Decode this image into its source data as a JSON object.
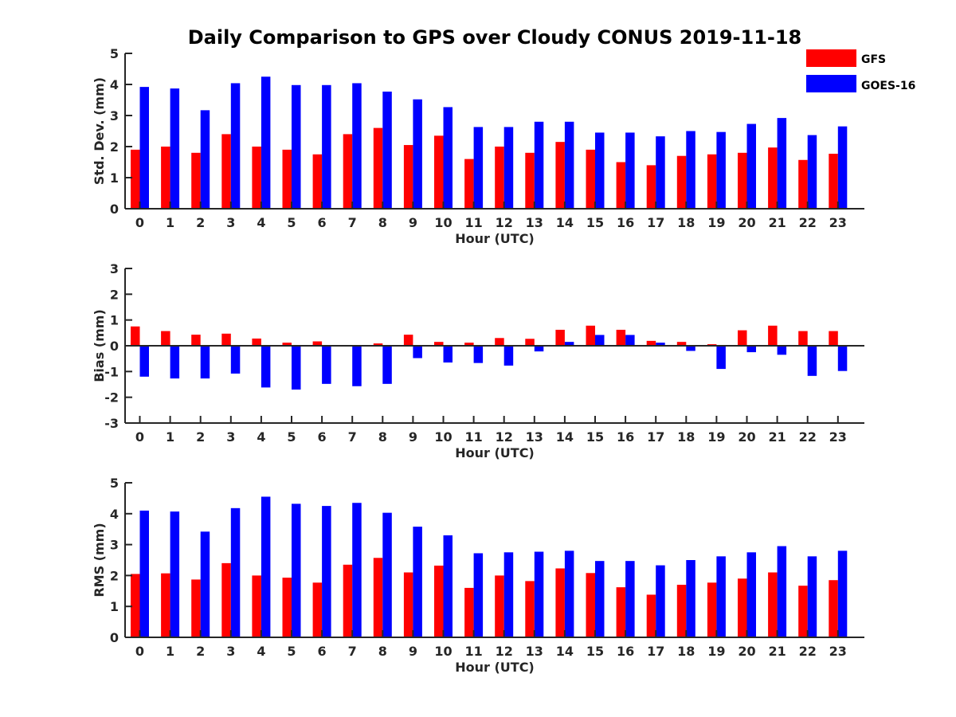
{
  "chart_data": {
    "type": "bar",
    "title": "Daily Comparison to GPS over Cloudy CONUS 2019-11-18",
    "legend": {
      "placement": "top-right",
      "entries": [
        "GFS",
        "GOES-16"
      ]
    },
    "colors": {
      "GFS": "#ff0000",
      "GOES-16": "#0000ff"
    },
    "categories": [
      "0",
      "1",
      "2",
      "3",
      "4",
      "5",
      "6",
      "7",
      "8",
      "9",
      "10",
      "11",
      "12",
      "13",
      "14",
      "15",
      "16",
      "17",
      "18",
      "19",
      "20",
      "21",
      "22",
      "23"
    ],
    "panels": [
      {
        "ylabel": "Std. Dev. (mm)",
        "xlabel": "Hour (UTC)",
        "ylim": [
          0,
          5
        ],
        "yticks": [
          "0",
          "1",
          "2",
          "3",
          "4",
          "5"
        ],
        "series": [
          {
            "name": "GFS",
            "values": [
              1.9,
              2.0,
              1.8,
              2.4,
              2.0,
              1.9,
              1.75,
              2.4,
              2.6,
              2.05,
              2.35,
              1.6,
              2.0,
              1.8,
              2.15,
              1.9,
              1.5,
              1.4,
              1.7,
              1.75,
              1.8,
              1.97,
              1.57,
              1.77
            ]
          },
          {
            "name": "GOES-16",
            "values": [
              3.92,
              3.87,
              3.17,
              4.04,
              4.25,
              3.98,
              3.98,
              4.04,
              3.77,
              3.52,
              3.27,
              2.63,
              2.63,
              2.8,
              2.8,
              2.45,
              2.45,
              2.33,
              2.5,
              2.47,
              2.73,
              2.92,
              2.37,
              2.65
            ]
          }
        ]
      },
      {
        "ylabel": "Bias (mm)",
        "xlabel": "Hour (UTC)",
        "ylim": [
          -3,
          3
        ],
        "yticks": [
          "-3",
          "-2",
          "-1",
          "0",
          "1",
          "2",
          "3"
        ],
        "series": [
          {
            "name": "GFS",
            "values": [
              0.75,
              0.57,
              0.43,
              0.47,
              0.28,
              0.12,
              0.17,
              0.0,
              0.09,
              0.43,
              0.15,
              0.12,
              0.3,
              0.27,
              0.62,
              0.78,
              0.62,
              0.19,
              0.15,
              0.06,
              0.6,
              0.78,
              0.57,
              0.57
            ]
          },
          {
            "name": "GOES-16",
            "values": [
              -1.2,
              -1.27,
              -1.27,
              -1.08,
              -1.62,
              -1.7,
              -1.48,
              -1.57,
              -1.48,
              -0.48,
              -0.65,
              -0.67,
              -0.77,
              -0.22,
              0.15,
              0.42,
              0.42,
              0.12,
              -0.2,
              -0.9,
              -0.25,
              -0.35,
              -1.17,
              -0.98
            ]
          }
        ]
      },
      {
        "ylabel": "RMS (mm)",
        "xlabel": "Hour (UTC)",
        "ylim": [
          0,
          5
        ],
        "yticks": [
          "0",
          "1",
          "2",
          "3",
          "4",
          "5"
        ],
        "series": [
          {
            "name": "GFS",
            "values": [
              2.05,
              2.07,
              1.87,
              2.4,
              2.0,
              1.93,
              1.77,
              2.35,
              2.57,
              2.1,
              2.32,
              1.6,
              2.0,
              1.82,
              2.23,
              2.08,
              1.62,
              1.38,
              1.7,
              1.77,
              1.9,
              2.1,
              1.67,
              1.85
            ]
          },
          {
            "name": "GOES-16",
            "values": [
              4.1,
              4.07,
              3.42,
              4.18,
              4.55,
              4.32,
              4.25,
              4.35,
              4.03,
              3.58,
              3.3,
              2.72,
              2.75,
              2.77,
              2.8,
              2.47,
              2.47,
              2.33,
              2.5,
              2.62,
              2.75,
              2.95,
              2.62,
              2.8
            ]
          }
        ]
      }
    ]
  }
}
